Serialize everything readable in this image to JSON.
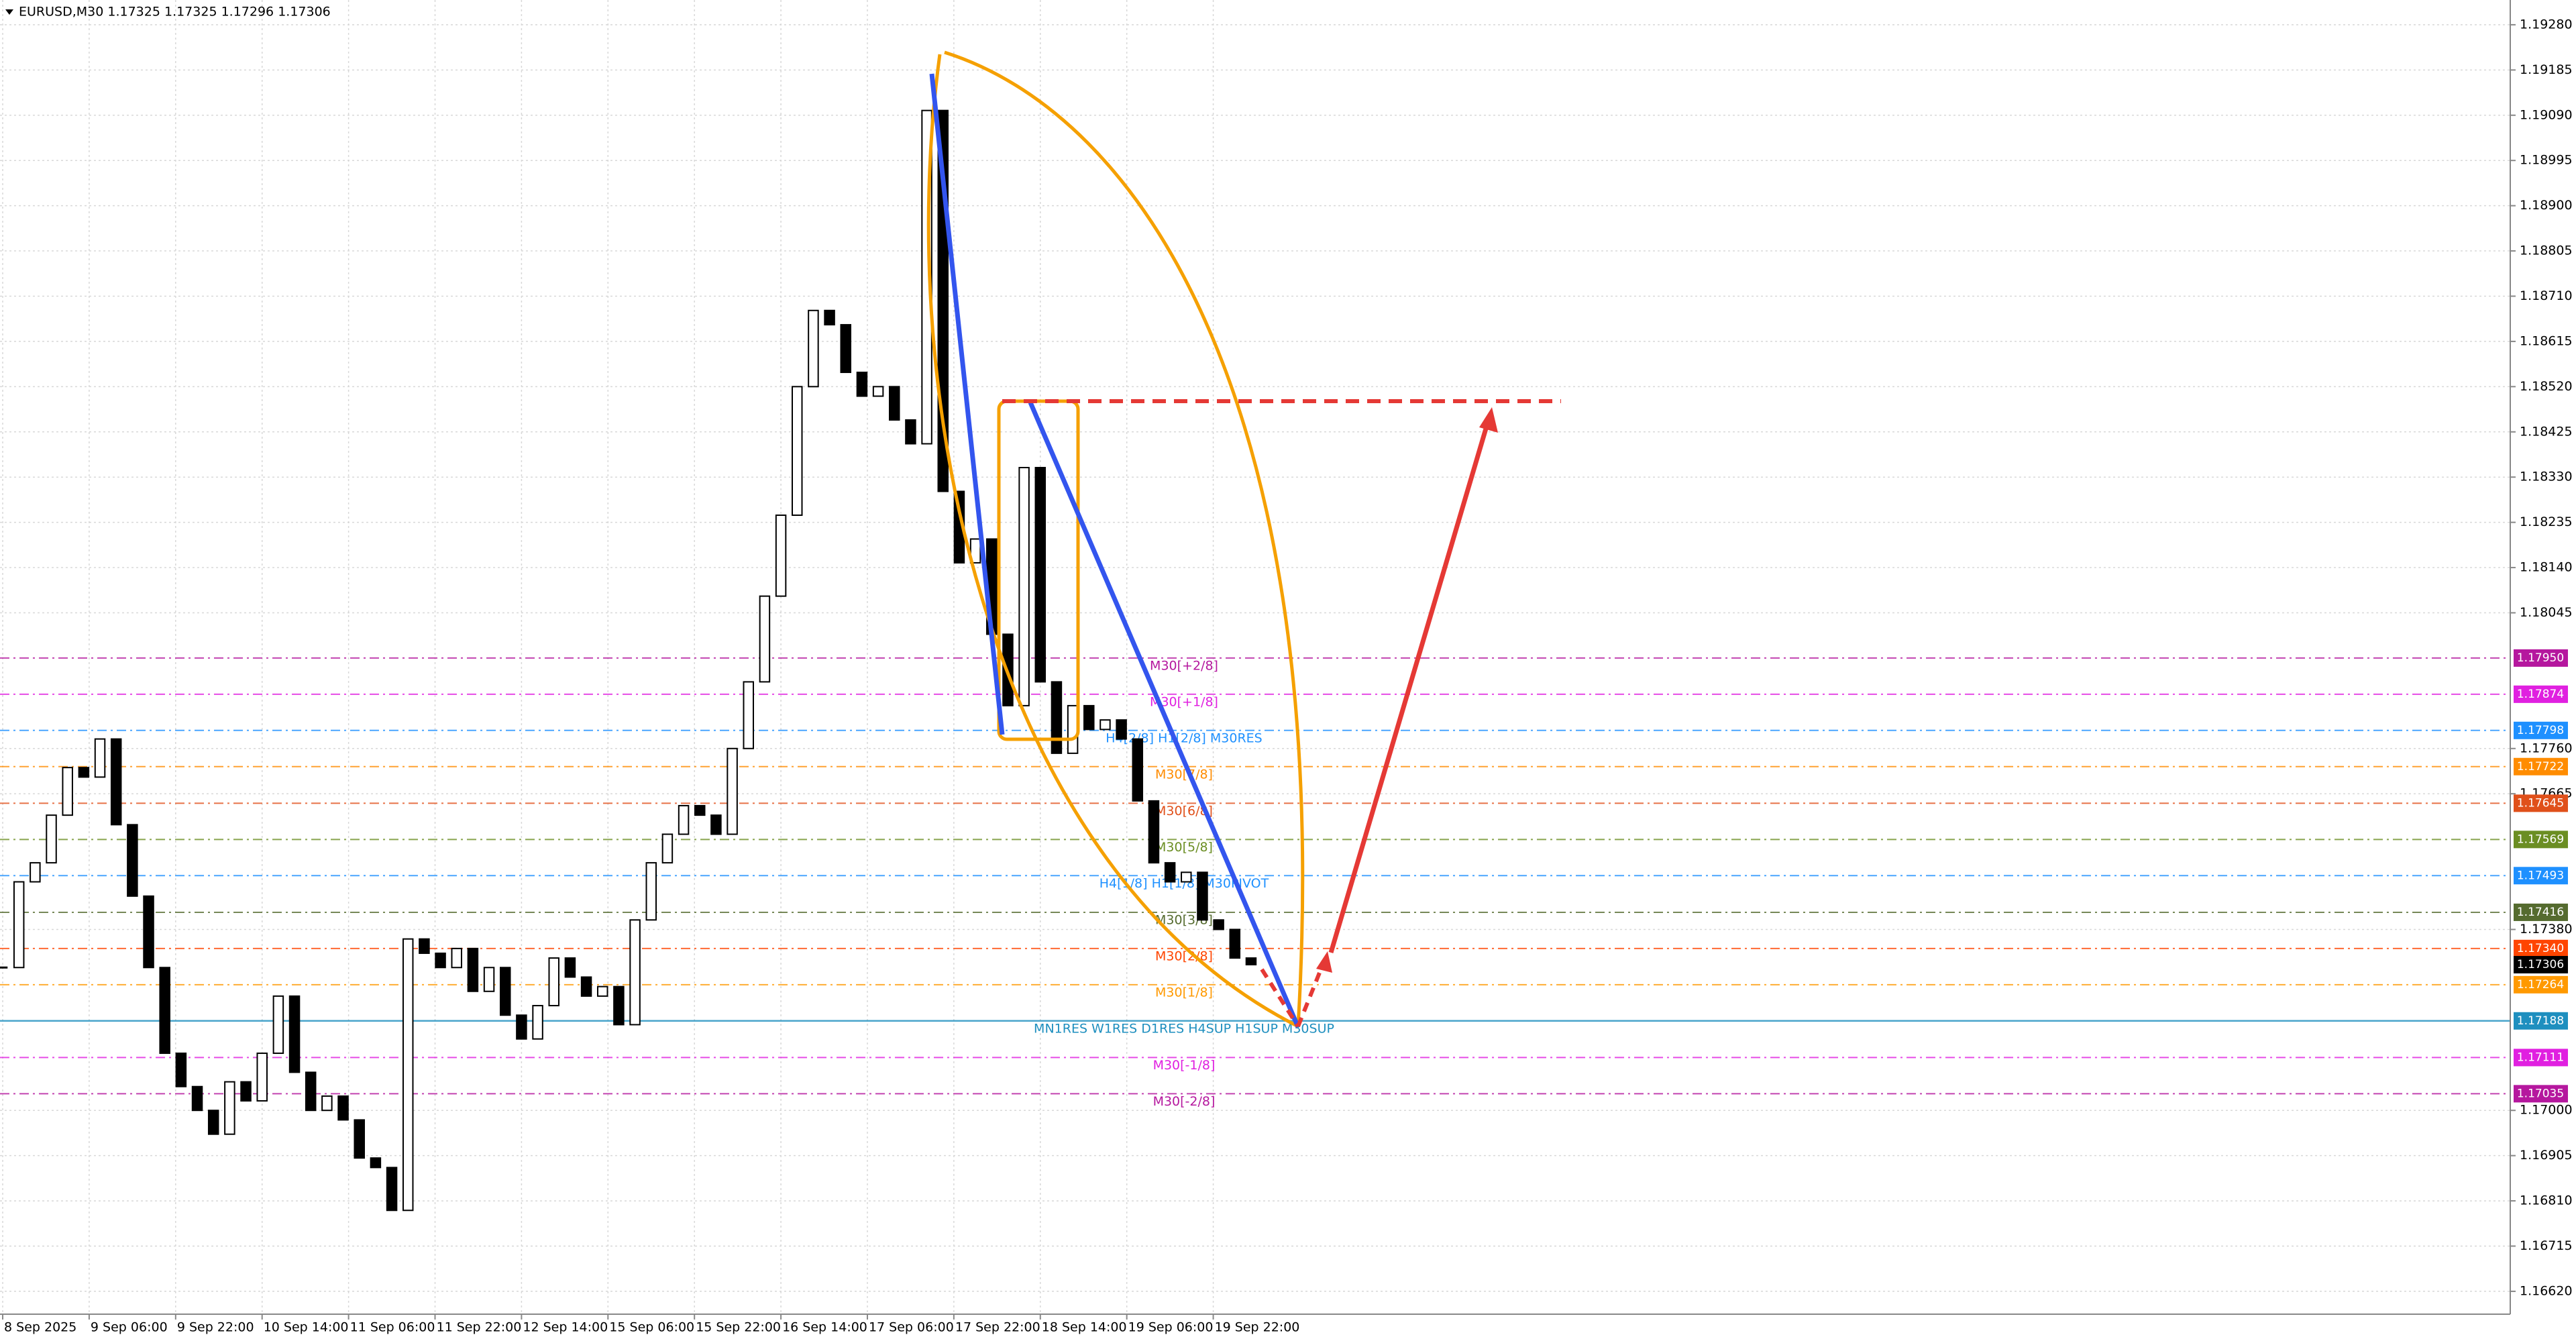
{
  "chart_data": {
    "type": "candlestick",
    "title": "EURUSD,M30  1.17325 1.17325 1.17296 1.17306",
    "color": "#000000",
    "x": [
      0,
      6,
      12,
      18,
      24,
      30,
      36,
      42,
      48,
      54,
      60,
      66,
      72,
      78,
      84,
      90,
      96,
      102,
      108,
      114,
      120,
      126,
      132,
      138,
      144,
      150,
      156,
      162,
      168,
      174,
      180,
      186,
      192,
      198,
      204,
      210,
      216,
      222,
      228,
      234,
      240,
      246,
      252,
      258,
      264,
      270,
      276,
      282,
      288,
      294,
      300,
      306,
      312,
      318,
      324,
      330,
      336,
      342,
      348,
      354,
      360,
      366,
      372,
      378,
      384,
      390,
      396,
      402,
      408,
      414,
      420,
      426,
      432,
      438,
      444,
      450,
      456,
      462
    ],
    "values": [
      1.173,
      1.1748,
      1.1752,
      1.1762,
      1.1772,
      1.177,
      1.1778,
      1.176,
      1.1745,
      1.173,
      1.1712,
      1.1705,
      1.17,
      1.1695,
      1.1706,
      1.1702,
      1.1712,
      1.1724,
      1.1708,
      1.17,
      1.1703,
      1.1698,
      1.169,
      1.1688,
      1.1679,
      1.1736,
      1.1733,
      1.173,
      1.1734,
      1.1725,
      1.173,
      1.172,
      1.1715,
      1.1722,
      1.1732,
      1.1728,
      1.1724,
      1.1726,
      1.1718,
      1.174,
      1.1752,
      1.1758,
      1.1764,
      1.1762,
      1.1758,
      1.1776,
      1.179,
      1.1808,
      1.1825,
      1.1852,
      1.1868,
      1.1865,
      1.1855,
      1.185,
      1.1852,
      1.1845,
      1.184,
      1.191,
      1.183,
      1.1815,
      1.182,
      1.18,
      1.1785,
      1.1835,
      1.179,
      1.1775,
      1.1785,
      1.178,
      1.1782,
      1.1778,
      1.1765,
      1.1752,
      1.1748,
      1.175,
      1.174,
      1.1738,
      1.1732,
      1.17306
    ],
    "xlim": [
      -1,
      928
    ],
    "xticks": [
      {
        "value": 0,
        "label": "8 Sep 2025"
      },
      {
        "value": 32,
        "label": "9 Sep 06:00"
      },
      {
        "value": 64,
        "label": "9 Sep 22:00"
      },
      {
        "value": 96,
        "label": "10 Sep 14:00"
      },
      {
        "value": 128,
        "label": "11 Sep 06:00"
      },
      {
        "value": 160,
        "label": "11 Sep 22:00"
      },
      {
        "value": 192,
        "label": "12 Sep 14:00"
      },
      {
        "value": 224,
        "label": "15 Sep 06:00"
      },
      {
        "value": 256,
        "label": "15 Sep 22:00"
      },
      {
        "value": 288,
        "label": "16 Sep 14:00"
      },
      {
        "value": 320,
        "label": "17 Sep 06:00"
      },
      {
        "value": 352,
        "label": "17 Sep 22:00"
      },
      {
        "value": 384,
        "label": "18 Sep 14:00"
      },
      {
        "value": 416,
        "label": "19 Sep 06:00"
      },
      {
        "value": 448,
        "label": "19 Sep 22:00"
      }
    ],
    "ylim": [
      1.16572,
      1.19332
    ],
    "yticks": [
      {
        "value": 1.1928,
        "label": "1.19280"
      },
      {
        "value": 1.19185,
        "label": "1.19185"
      },
      {
        "value": 1.1909,
        "label": "1.19090"
      },
      {
        "value": 1.18995,
        "label": "1.18995"
      },
      {
        "value": 1.189,
        "label": "1.18900"
      },
      {
        "value": 1.18805,
        "label": "1.18805"
      },
      {
        "value": 1.1871,
        "label": "1.18710"
      },
      {
        "value": 1.18615,
        "label": "1.18615"
      },
      {
        "value": 1.1852,
        "label": "1.18520"
      },
      {
        "value": 1.18425,
        "label": "1.18425"
      },
      {
        "value": 1.1833,
        "label": "1.18330"
      },
      {
        "value": 1.18235,
        "label": "1.18235"
      },
      {
        "value": 1.1814,
        "label": "1.18140"
      },
      {
        "value": 1.18045,
        "label": "1.18045"
      },
      {
        "value": 1.1776,
        "label": "1.17760"
      },
      {
        "value": 1.17665,
        "label": "1.17665"
      },
      {
        "value": 1.1738,
        "label": "1.17380"
      },
      {
        "value": 1.17,
        "label": "1.17000"
      },
      {
        "value": 1.16905,
        "label": "1.16905"
      },
      {
        "value": 1.1681,
        "label": "1.16810"
      },
      {
        "value": 1.16715,
        "label": "1.16715"
      },
      {
        "value": 1.1662,
        "label": "1.16620"
      }
    ],
    "grid": true,
    "levels": [
      {
        "name": "M30[+2/8]",
        "value": 1.1795,
        "label": "1.17950",
        "color": "#b5179e"
      },
      {
        "name": "M30[+1/8]",
        "value": 1.17874,
        "label": "1.17874",
        "color": "#e020e0"
      },
      {
        "name": "H4[2/8] H1[2/8] M30RES",
        "value": 1.17798,
        "label": "1.17798",
        "color": "#1e90ff"
      },
      {
        "name": "M30[7/8]",
        "value": 1.17722,
        "label": "1.17722",
        "color": "#ff8c00"
      },
      {
        "name": "M30[6/8]",
        "value": 1.17645,
        "label": "1.17645",
        "color": "#e0501a"
      },
      {
        "name": "M30[5/8]",
        "value": 1.17569,
        "label": "1.17569",
        "color": "#6b8e23"
      },
      {
        "name": "H4[1/8] H1[1/8] M30PIVOT",
        "value": 1.17493,
        "label": "1.17493",
        "color": "#1e90ff"
      },
      {
        "name": "M30[3/8]",
        "value": 1.17416,
        "label": "1.17416",
        "color": "#556b2f"
      },
      {
        "name": "M30[2/8]",
        "value": 1.1734,
        "label": "1.17340",
        "color": "#ff4500"
      },
      {
        "name": "M30[1/8]",
        "value": 1.17264,
        "label": "1.17264",
        "color": "#ff9900"
      },
      {
        "name": "MN1RES W1RES D1RES H4SUP H1SUP M30SUP",
        "value": 1.17188,
        "label": "1.17188",
        "color": "#1e8fbf"
      },
      {
        "name": "M30[-1/8]",
        "value": 1.17111,
        "label": "1.17111",
        "color": "#e020e0"
      },
      {
        "name": "M30[-2/8]",
        "value": 1.17035,
        "label": "1.17035",
        "color": "#b5179e"
      }
    ],
    "current": {
      "value": 1.17306,
      "label": "1.17306",
      "color": "#000000"
    }
  }
}
